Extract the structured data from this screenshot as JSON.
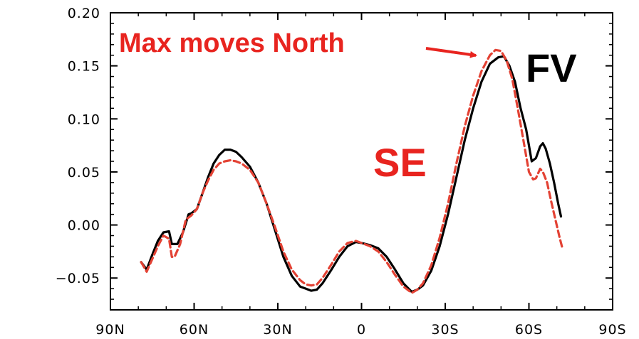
{
  "chart_data": {
    "type": "line",
    "title": "",
    "xlabel": "",
    "ylabel": "",
    "xlim": [
      90,
      -90
    ],
    "ylim": [
      -0.08,
      0.2
    ],
    "x_ticks": [
      {
        "value": 90,
        "label": "90N"
      },
      {
        "value": 60,
        "label": "60N"
      },
      {
        "value": 30,
        "label": "30N"
      },
      {
        "value": 0,
        "label": "0"
      },
      {
        "value": -30,
        "label": "30S"
      },
      {
        "value": -60,
        "label": "60S"
      },
      {
        "value": -90,
        "label": "90S"
      }
    ],
    "y_ticks": [
      {
        "value": 0.2,
        "label": "0.20"
      },
      {
        "value": 0.15,
        "label": "0.15"
      },
      {
        "value": 0.1,
        "label": "0.10"
      },
      {
        "value": 0.05,
        "label": "0.05"
      },
      {
        "value": 0.0,
        "label": "0.00"
      },
      {
        "value": -0.05,
        "label": "−0.05"
      }
    ],
    "grid": false,
    "series": [
      {
        "name": "FV",
        "color": "#000000",
        "style": "solid",
        "points": [
          [
            79,
            -0.035
          ],
          [
            77,
            -0.042
          ],
          [
            75,
            -0.028
          ],
          [
            73,
            -0.015
          ],
          [
            71,
            -0.007
          ],
          [
            69,
            -0.006
          ],
          [
            68,
            -0.018
          ],
          [
            66,
            -0.018
          ],
          [
            64,
            -0.007
          ],
          [
            62,
            0.01
          ],
          [
            61,
            0.011
          ],
          [
            59,
            0.015
          ],
          [
            57,
            0.03
          ],
          [
            55,
            0.045
          ],
          [
            53,
            0.058
          ],
          [
            51,
            0.066
          ],
          [
            49,
            0.071
          ],
          [
            47,
            0.071
          ],
          [
            45,
            0.069
          ],
          [
            43,
            0.064
          ],
          [
            40,
            0.055
          ],
          [
            37,
            0.04
          ],
          [
            34,
            0.02
          ],
          [
            31,
            -0.005
          ],
          [
            28,
            -0.03
          ],
          [
            25,
            -0.048
          ],
          [
            22,
            -0.058
          ],
          [
            20,
            -0.06
          ],
          [
            18,
            -0.062
          ],
          [
            16,
            -0.061
          ],
          [
            14,
            -0.055
          ],
          [
            11,
            -0.043
          ],
          [
            8,
            -0.03
          ],
          [
            5,
            -0.02
          ],
          [
            2,
            -0.016
          ],
          [
            0,
            -0.017
          ],
          [
            -3,
            -0.019
          ],
          [
            -6,
            -0.022
          ],
          [
            -9,
            -0.03
          ],
          [
            -12,
            -0.042
          ],
          [
            -15,
            -0.055
          ],
          [
            -18,
            -0.063
          ],
          [
            -20,
            -0.061
          ],
          [
            -22,
            -0.057
          ],
          [
            -25,
            -0.043
          ],
          [
            -28,
            -0.02
          ],
          [
            -31,
            0.01
          ],
          [
            -34,
            0.045
          ],
          [
            -37,
            0.08
          ],
          [
            -40,
            0.11
          ],
          [
            -43,
            0.135
          ],
          [
            -46,
            0.152
          ],
          [
            -49,
            0.158
          ],
          [
            -51,
            0.159
          ],
          [
            -53,
            0.15
          ],
          [
            -55,
            0.135
          ],
          [
            -57,
            0.11
          ],
          [
            -59,
            0.09
          ],
          [
            -61,
            0.06
          ],
          [
            -62.5,
            0.063
          ],
          [
            -64,
            0.074
          ],
          [
            -65,
            0.077
          ],
          [
            -66,
            0.072
          ],
          [
            -67.5,
            0.058
          ],
          [
            -69,
            0.04
          ],
          [
            -70.5,
            0.02
          ],
          [
            -71.5,
            0.008
          ]
        ]
      },
      {
        "name": "SE",
        "color": "#e34234",
        "style": "dashed",
        "points": [
          [
            79,
            -0.035
          ],
          [
            77,
            -0.044
          ],
          [
            75,
            -0.032
          ],
          [
            73,
            -0.02
          ],
          [
            71,
            -0.01
          ],
          [
            69,
            -0.013
          ],
          [
            68,
            -0.03
          ],
          [
            67,
            -0.03
          ],
          [
            65,
            -0.018
          ],
          [
            63,
            0.005
          ],
          [
            61,
            0.009
          ],
          [
            59,
            0.015
          ],
          [
            57,
            0.03
          ],
          [
            55,
            0.042
          ],
          [
            53,
            0.052
          ],
          [
            51,
            0.058
          ],
          [
            49,
            0.06
          ],
          [
            47,
            0.061
          ],
          [
            45,
            0.06
          ],
          [
            43,
            0.058
          ],
          [
            40,
            0.052
          ],
          [
            37,
            0.04
          ],
          [
            34,
            0.02
          ],
          [
            31,
            -0.002
          ],
          [
            28,
            -0.025
          ],
          [
            25,
            -0.042
          ],
          [
            22,
            -0.052
          ],
          [
            20,
            -0.056
          ],
          [
            18,
            -0.057
          ],
          [
            16,
            -0.056
          ],
          [
            14,
            -0.05
          ],
          [
            11,
            -0.038
          ],
          [
            8,
            -0.025
          ],
          [
            5,
            -0.017
          ],
          [
            2,
            -0.015
          ],
          [
            0,
            -0.017
          ],
          [
            -3,
            -0.02
          ],
          [
            -6,
            -0.025
          ],
          [
            -9,
            -0.035
          ],
          [
            -12,
            -0.047
          ],
          [
            -15,
            -0.058
          ],
          [
            -18,
            -0.064
          ],
          [
            -20,
            -0.061
          ],
          [
            -22,
            -0.055
          ],
          [
            -25,
            -0.038
          ],
          [
            -28,
            -0.012
          ],
          [
            -31,
            0.02
          ],
          [
            -34,
            0.058
          ],
          [
            -37,
            0.093
          ],
          [
            -40,
            0.122
          ],
          [
            -43,
            0.145
          ],
          [
            -46,
            0.16
          ],
          [
            -48,
            0.165
          ],
          [
            -50,
            0.164
          ],
          [
            -52,
            0.155
          ],
          [
            -54,
            0.138
          ],
          [
            -56,
            0.11
          ],
          [
            -58,
            0.08
          ],
          [
            -60,
            0.05
          ],
          [
            -61.5,
            0.043
          ],
          [
            -62.5,
            0.044
          ],
          [
            -64,
            0.053
          ],
          [
            -65,
            0.05
          ],
          [
            -66.5,
            0.04
          ],
          [
            -68,
            0.022
          ],
          [
            -69.5,
            0.005
          ],
          [
            -71,
            -0.012
          ],
          [
            -72,
            -0.022
          ]
        ]
      }
    ],
    "annotations": [
      {
        "text": "Max moves North",
        "color": "#e8241f",
        "arrow": true
      },
      {
        "text": "FV",
        "color": "#000000"
      },
      {
        "text": "SE",
        "color": "#e8241f"
      }
    ]
  }
}
